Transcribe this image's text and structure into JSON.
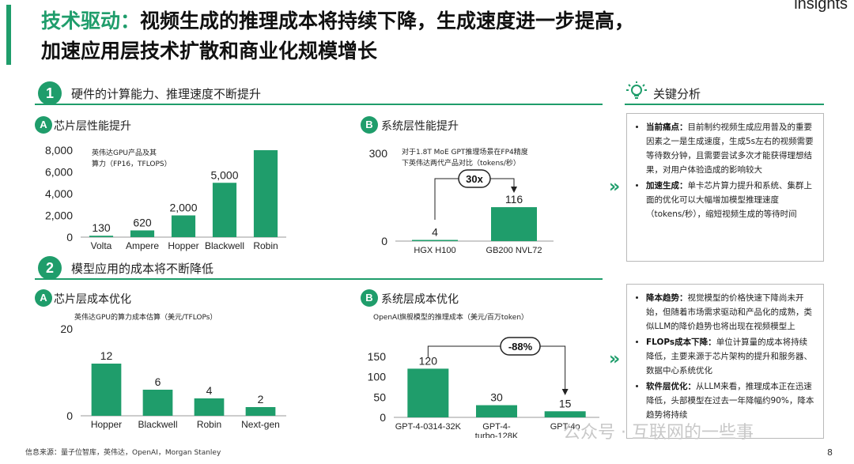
{
  "brand": "insights",
  "title": {
    "highlight": "技术驱动：",
    "line1_rest": "视频生成的推理成本将持续下降，生成速度进一步提高，",
    "line2": "加速应用层技术扩散和商业化规模增长"
  },
  "section1": {
    "number": "1",
    "title": "硬件的计算能力、推理速度不断提升"
  },
  "section2": {
    "number": "2",
    "title": "模型应用的成本将不断降低"
  },
  "analysis": {
    "title": "关键分析"
  },
  "charts": {
    "c1": {
      "badge": "A",
      "title": "芯片层性能提升",
      "note_l1": "英伟达GPU产品及其",
      "note_l2": "算力（FP16，TFLOPS）"
    },
    "c2": {
      "badge": "B",
      "title": "系统层性能提升",
      "note_l1": "对于1.8T MoE GPT推理场景在FP4精度",
      "note_l2": "下英伟达两代产品对比（tokens/秒）",
      "callout": "30x"
    },
    "c3": {
      "badge": "A",
      "title": "芯片层成本优化",
      "note_l1": "英伟达GPU的算力成本估算（美元/TFLOPs）"
    },
    "c4": {
      "badge": "B",
      "title": "系统层成本优化",
      "note_l1": "OpenAI旗舰模型的推理成本（美元/百万token）",
      "callout": "-88%"
    }
  },
  "chart_data": [
    {
      "type": "bar",
      "categories": [
        "Volta",
        "Ampere",
        "Hopper",
        "Blackwell",
        "Robin"
      ],
      "values": [
        130,
        620,
        2000,
        5000,
        8000
      ],
      "labels": [
        "130",
        "620",
        "2,000",
        "5,000",
        ""
      ],
      "ylim": [
        0,
        8000
      ],
      "yticks": [
        0,
        2000,
        4000,
        6000,
        8000
      ],
      "ytick_labels": [
        "0",
        "2,000",
        "4,000",
        "6,000",
        "8,000"
      ]
    },
    {
      "type": "bar",
      "categories": [
        "HGX H100",
        "GB200 NVL72"
      ],
      "values": [
        4,
        116
      ],
      "labels": [
        "4",
        "116"
      ],
      "ylim": [
        0,
        300
      ],
      "yticks": [
        0,
        300
      ],
      "ytick_labels": [
        "0",
        "300"
      ]
    },
    {
      "type": "bar",
      "categories": [
        "Hopper",
        "Blackwell",
        "Robin",
        "Next-gen"
      ],
      "values": [
        12,
        6,
        4,
        2
      ],
      "labels": [
        "12",
        "6",
        "4",
        "2"
      ],
      "ylim": [
        0,
        20
      ],
      "yticks": [
        0,
        20
      ],
      "ytick_labels": [
        "0",
        "20"
      ]
    },
    {
      "type": "bar",
      "categories": [
        "GPT-4-0314-32K",
        "GPT-4-turbo-128K",
        "GPT-4o"
      ],
      "category_lines": [
        [
          "GPT-4-0314-32K"
        ],
        [
          "GPT-4-",
          "turbo-128K"
        ],
        [
          "GPT-4o"
        ]
      ],
      "values": [
        120,
        30,
        15
      ],
      "labels": [
        "120",
        "30",
        "15"
      ],
      "ylim": [
        0,
        150
      ],
      "yticks": [
        0,
        50,
        100,
        150
      ],
      "ytick_labels": [
        "0",
        "50",
        "100",
        "150"
      ]
    }
  ],
  "panel1": {
    "items": [
      {
        "head": "当前痛点：",
        "body": "目前制约视频生成应用普及的重要因素之一是生成速度，生成5s左右的视频需要等待数分钟，且需要尝试多次才能获得理想结果，对用户体验造成的影响较大"
      },
      {
        "head": "加速生成：",
        "body": "单卡芯片算力提升和系统、集群上面的优化可以大幅增加模型推理速度（tokens/秒），缩短视频生成的等待时间"
      }
    ]
  },
  "panel2": {
    "items": [
      {
        "head": "降本趋势：",
        "body": "视觉模型的价格快速下降尚未开始，但随着市场需求驱动和产品化的成熟，类似LLM的降价趋势也将出现在视频模型上"
      },
      {
        "head": "FLOPs成本下降：",
        "body": "单位计算量的成本将持续降低，主要来源于芯片架构的提升和服务器、数据中心系统优化"
      },
      {
        "head": "软件层优化：",
        "body": "从LLM来看，推理成本正在迅速降低，头部模型在过去一年降幅约90%，降本趋势将持续"
      }
    ]
  },
  "footer": {
    "source": "信息来源：量子位智库，英伟达，OpenAI，Morgan Stanley",
    "page": "8"
  },
  "watermark": "公众号 · 互联网的一些事",
  "colors": {
    "accent": "#1f9d6b",
    "panel_border": "#b9b9b9"
  }
}
